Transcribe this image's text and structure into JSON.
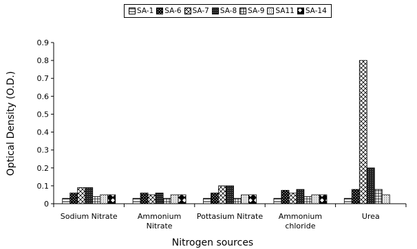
{
  "chart_data": {
    "type": "bar",
    "xlabel": "Nitrogen sources",
    "ylabel": "Optical Density (O.D.)",
    "ylim": [
      0,
      0.9
    ],
    "yticks": [
      "0",
      "0.1",
      "0.2",
      "0.3",
      "0.4",
      "0.5",
      "0.6",
      "0.7",
      "0.8",
      "0.9"
    ],
    "categories": [
      [
        "Sodium Nitrate"
      ],
      [
        "Ammonium",
        "Nitrate"
      ],
      [
        "Pottasium Nitrate"
      ],
      [
        "Ammonium",
        "chloride"
      ],
      [
        "Urea"
      ]
    ],
    "grid": false,
    "legend_position": "top",
    "series": [
      {
        "name": "SA-1",
        "pattern": "hstripe",
        "values": [
          0.03,
          0.03,
          0.03,
          0.03,
          0.03
        ]
      },
      {
        "name": "SA-6",
        "pattern": "dark-check",
        "values": [
          0.06,
          0.06,
          0.06,
          0.075,
          0.08
        ]
      },
      {
        "name": "SA-7",
        "pattern": "diag-cross",
        "values": [
          0.09,
          0.05,
          0.1,
          0.06,
          0.8
        ]
      },
      {
        "name": "SA-8",
        "pattern": "dense-check",
        "values": [
          0.09,
          0.06,
          0.1,
          0.08,
          0.2
        ]
      },
      {
        "name": "SA-9",
        "pattern": "grid",
        "values": [
          0.04,
          0.03,
          0.03,
          0.04,
          0.08
        ]
      },
      {
        "name": "SA11",
        "pattern": "light-dots",
        "values": [
          0.05,
          0.05,
          0.05,
          0.05,
          0.05
        ]
      },
      {
        "name": "SA-14",
        "pattern": "diamond",
        "values": [
          0.05,
          0.05,
          0.05,
          0.05,
          null
        ]
      }
    ]
  }
}
